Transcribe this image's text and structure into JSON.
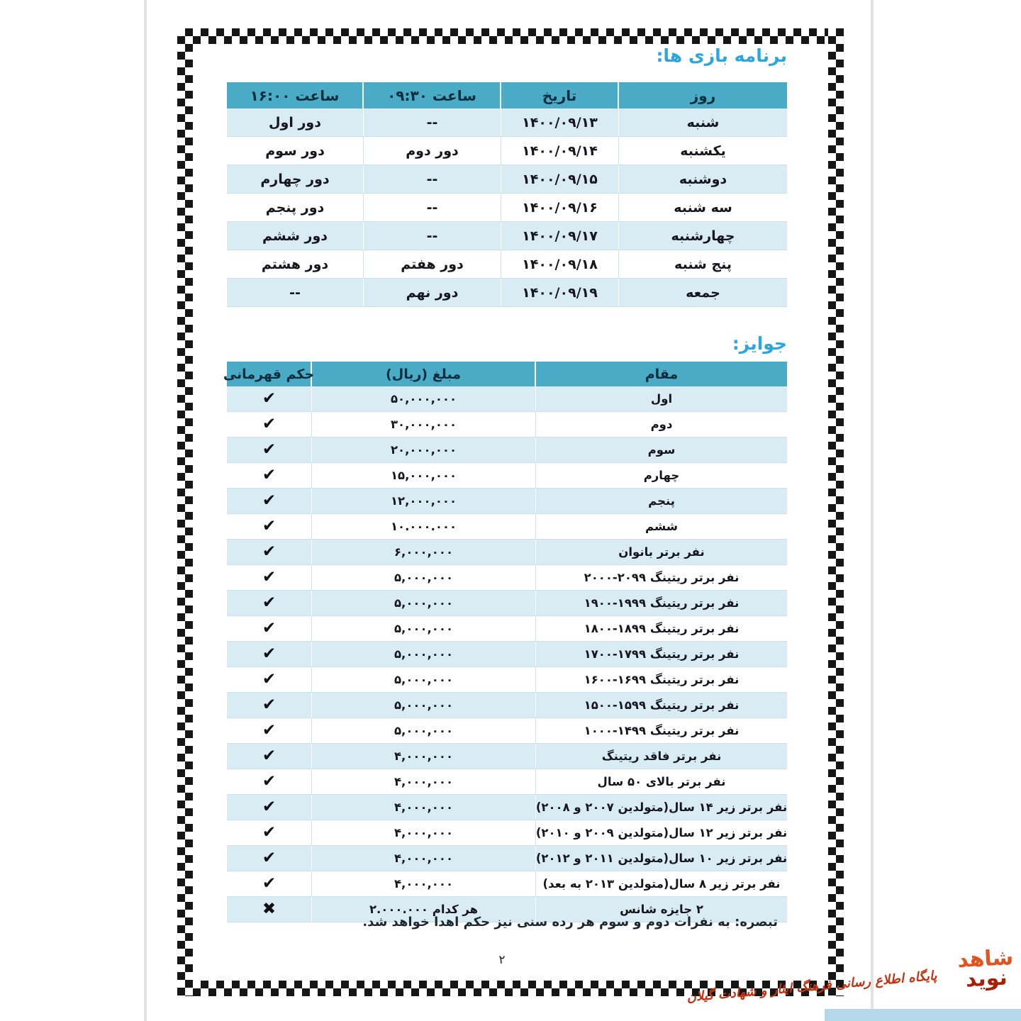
{
  "titles": {
    "schedule": "برنامه بازی ها:",
    "prizes": "جوایز:"
  },
  "schedule_table": {
    "headers": {
      "day": "روز",
      "date": "تاریخ",
      "morning": "ساعت ۰۹:۳۰",
      "afternoon": "ساعت ۱۶:۰۰"
    },
    "rows": [
      {
        "day": "شنبه",
        "date": "۱۴۰۰/۰۹/۱۳",
        "morning": "--",
        "afternoon": "دور اول"
      },
      {
        "day": "یکشنبه",
        "date": "۱۴۰۰/۰۹/۱۴",
        "morning": "دور دوم",
        "afternoon": "دور سوم"
      },
      {
        "day": "دوشنبه",
        "date": "۱۴۰۰/۰۹/۱۵",
        "morning": "--",
        "afternoon": "دور چهارم"
      },
      {
        "day": "سه شنبه",
        "date": "۱۴۰۰/۰۹/۱۶",
        "morning": "--",
        "afternoon": "دور پنجم"
      },
      {
        "day": "چهارشنبه",
        "date": "۱۴۰۰/۰۹/۱۷",
        "morning": "--",
        "afternoon": "دور ششم"
      },
      {
        "day": "پنج شنبه",
        "date": "۱۴۰۰/۰۹/۱۸",
        "morning": "دور هفتم",
        "afternoon": "دور هشتم"
      },
      {
        "day": "جمعه",
        "date": "۱۴۰۰/۰۹/۱۹",
        "morning": "دور نهم",
        "afternoon": "--"
      }
    ]
  },
  "prizes_table": {
    "headers": {
      "rank": "مقام",
      "amount": "مبلغ (ریال)",
      "cert": "حکم قهرمانی"
    },
    "rows": [
      {
        "rank": "اول",
        "amount": "۵۰,۰۰۰,۰۰۰",
        "mark": "✔"
      },
      {
        "rank": "دوم",
        "amount": "۳۰,۰۰۰,۰۰۰",
        "mark": "✔"
      },
      {
        "rank": "سوم",
        "amount": "۲۰,۰۰۰,۰۰۰",
        "mark": "✔"
      },
      {
        "rank": "چهارم",
        "amount": "۱۵,۰۰۰,۰۰۰",
        "mark": "✔"
      },
      {
        "rank": "پنجم",
        "amount": "۱۲,۰۰۰,۰۰۰",
        "mark": "✔"
      },
      {
        "rank": "ششم",
        "amount": "۱۰.۰۰۰.۰۰۰",
        "mark": "✔"
      },
      {
        "rank": "نفر برتر بانوان",
        "amount": "۶,۰۰۰,۰۰۰",
        "mark": "✔"
      },
      {
        "rank": "نفر برتر ریتینگ ۲۰۹۹-۲۰۰۰",
        "amount": "۵,۰۰۰,۰۰۰",
        "mark": "✔"
      },
      {
        "rank": "نفر برتر ریتینگ ۱۹۹۹-۱۹۰۰",
        "amount": "۵,۰۰۰,۰۰۰",
        "mark": "✔"
      },
      {
        "rank": "نفر برتر ریتینگ ۱۸۹۹-۱۸۰۰",
        "amount": "۵,۰۰۰,۰۰۰",
        "mark": "✔"
      },
      {
        "rank": "نفر برتر ریتینگ ۱۷۹۹-۱۷۰۰",
        "amount": "۵,۰۰۰,۰۰۰",
        "mark": "✔"
      },
      {
        "rank": "نفر برتر ریتینگ ۱۶۹۹-۱۶۰۰",
        "amount": "۵,۰۰۰,۰۰۰",
        "mark": "✔"
      },
      {
        "rank": "نفر برتر ریتینگ ۱۵۹۹-۱۵۰۰",
        "amount": "۵,۰۰۰,۰۰۰",
        "mark": "✔"
      },
      {
        "rank": "نفر برتر ریتینگ ۱۴۹۹-۱۰۰۰",
        "amount": "۵,۰۰۰,۰۰۰",
        "mark": "✔"
      },
      {
        "rank": "نفر برتر فاقد ریتینگ",
        "amount": "۴,۰۰۰,۰۰۰",
        "mark": "✔"
      },
      {
        "rank": "نفر برتر بالای ۵۰ سال",
        "amount": "۴,۰۰۰,۰۰۰",
        "mark": "✔"
      },
      {
        "rank": "نفر برتر زیر ۱۴ سال(متولدین ۲۰۰۷ و ۲۰۰۸)",
        "amount": "۴,۰۰۰,۰۰۰",
        "mark": "✔"
      },
      {
        "rank": "نفر برتر زیر ۱۲ سال(متولدین ۲۰۰۹ و ۲۰۱۰)",
        "amount": "۴,۰۰۰,۰۰۰",
        "mark": "✔"
      },
      {
        "rank": "نفر برتر زیر ۱۰ سال(متولدین ۲۰۱۱ و ۲۰۱۲)",
        "amount": "۴,۰۰۰,۰۰۰",
        "mark": "✔"
      },
      {
        "rank": "نفر برتر زیر ۸ سال(متولدین ۲۰۱۳ به بعد)",
        "amount": "۴,۰۰۰,۰۰۰",
        "mark": "✔"
      },
      {
        "rank": "۲ جایزه شانس",
        "amount": "هر کدام ۲.۰۰۰.۰۰۰",
        "mark": "✖"
      }
    ]
  },
  "note": "تبصره: به نفرات دوم و سوم هر رده سنی نیز حکم اهدا خواهد شد.",
  "page_number": "۲",
  "watermark": {
    "logo_top": "شاهد",
    "logo_bottom": "نوید",
    "caption": "پایگاه اطلاع رسانی فرهنگ ایثار و شهادت گیلان"
  },
  "colors": {
    "accent_blue": "#2CA6E0",
    "header_teal": "#4AABC7",
    "row_light_blue": "#D9ECF4",
    "mark_black": "#101010",
    "watermark_red": "#C5320F",
    "strip_blue": "#B5D8E9"
  }
}
